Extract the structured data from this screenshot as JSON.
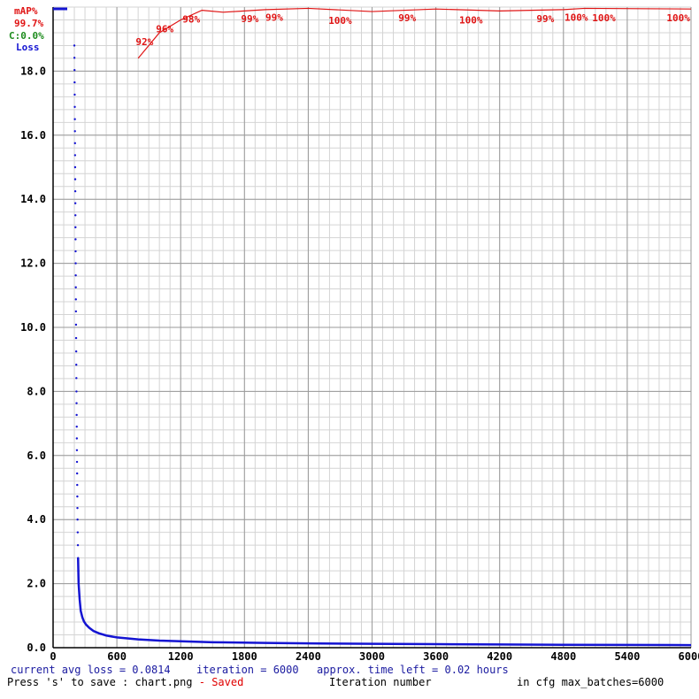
{
  "chart_data": {
    "type": "line",
    "xlim": [
      0,
      6000
    ],
    "ylim": [
      0,
      20
    ],
    "x_ticks": [
      "0",
      "600",
      "1200",
      "1800",
      "2400",
      "3000",
      "3600",
      "4200",
      "4800",
      "5400",
      "6000"
    ],
    "y_ticks": [
      "0.0",
      "2.0",
      "4.0",
      "6.0",
      "8.0",
      "10.0",
      "12.0",
      "14.0",
      "16.0",
      "18.0"
    ],
    "legend": {
      "map_label": "mAP%",
      "map_value": "99.7%",
      "c_label": "C:0.0%",
      "loss_label": "Loss"
    },
    "colors": {
      "loss": "#1414d2",
      "map": "#e01414",
      "c": "#1e8c1e",
      "grid_major": "#9a9a9a",
      "grid_minor": "#d4d4d4"
    },
    "series": [
      {
        "name": "Loss",
        "x": [
          200,
          205,
          210,
          215,
          220,
          225,
          230,
          235,
          240,
          250,
          260,
          275,
          290,
          310,
          340,
          380,
          430,
          500,
          600,
          800,
          1000,
          1500,
          2000,
          2500,
          3000,
          3600,
          4200,
          4800,
          5400,
          6000
        ],
        "values": [
          18.8,
          16.5,
          13.5,
          10.5,
          8.0,
          5.8,
          4.0,
          2.8,
          2.0,
          1.5,
          1.15,
          0.95,
          0.82,
          0.72,
          0.62,
          0.52,
          0.45,
          0.38,
          0.32,
          0.26,
          0.22,
          0.17,
          0.15,
          0.13,
          0.12,
          0.11,
          0.1,
          0.09,
          0.085,
          0.08
        ]
      },
      {
        "name": "mAP%",
        "x": [
          800,
          1000,
          1200,
          1400,
          1600,
          1800,
          2000,
          2400,
          3000,
          3600,
          4200,
          4800,
          5000,
          6000
        ],
        "values": [
          92,
          96,
          98,
          99.5,
          99.2,
          99.4,
          99.6,
          99.8,
          99.3,
          99.7,
          99.4,
          99.6,
          99.8,
          99.7
        ],
        "labels": [
          {
            "x": 860,
            "text": "92%"
          },
          {
            "x": 1050,
            "text": "96%"
          },
          {
            "x": 1300,
            "text": "98%"
          },
          {
            "x": 1850,
            "text": "99%"
          },
          {
            "x": 2080,
            "text": "99%"
          },
          {
            "x": 2700,
            "text": "100%"
          },
          {
            "x": 3330,
            "text": "99%"
          },
          {
            "x": 3930,
            "text": "100%"
          },
          {
            "x": 4630,
            "text": "99%"
          },
          {
            "x": 4920,
            "text": "100%"
          },
          {
            "x": 5180,
            "text": "100%"
          },
          {
            "x": 5880,
            "text": "100%"
          }
        ]
      }
    ],
    "xlabel": "Iteration number"
  },
  "status": {
    "current_loss": "current avg loss = 0.0814",
    "iteration": "iteration = 6000",
    "time_left": "approx. time left = 0.02 hours",
    "save_hint": "Press 's' to save : chart.png",
    "saved": " - Saved",
    "xlabel": "Iteration number",
    "max_batches": "in cfg max_batches=6000"
  }
}
